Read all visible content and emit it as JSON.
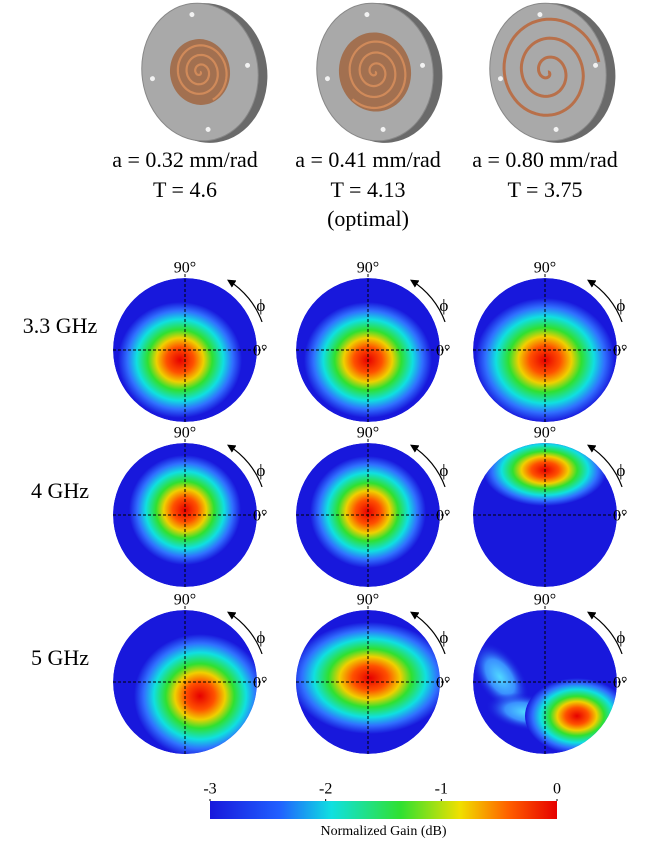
{
  "columns": [
    {
      "label_a": "a = 0.32 mm/rad",
      "label_t": "T = 4.6"
    },
    {
      "label_a": "a = 0.41 mm/rad",
      "label_t": "T = 4.13",
      "note": "(optimal)"
    },
    {
      "label_a": "a = 0.80 mm/rad",
      "label_t": "T = 3.75"
    }
  ],
  "rows": [
    "3.3 GHz",
    "4 GHz",
    "5 GHz"
  ],
  "plot_labels": {
    "top": "90°",
    "right": "0°",
    "arrow": "ϕ"
  },
  "colorbar": {
    "range": [
      -3,
      0
    ],
    "ticks": [
      -3,
      -2,
      -1,
      0
    ],
    "label": "Normalized Gain (dB)"
  }
}
